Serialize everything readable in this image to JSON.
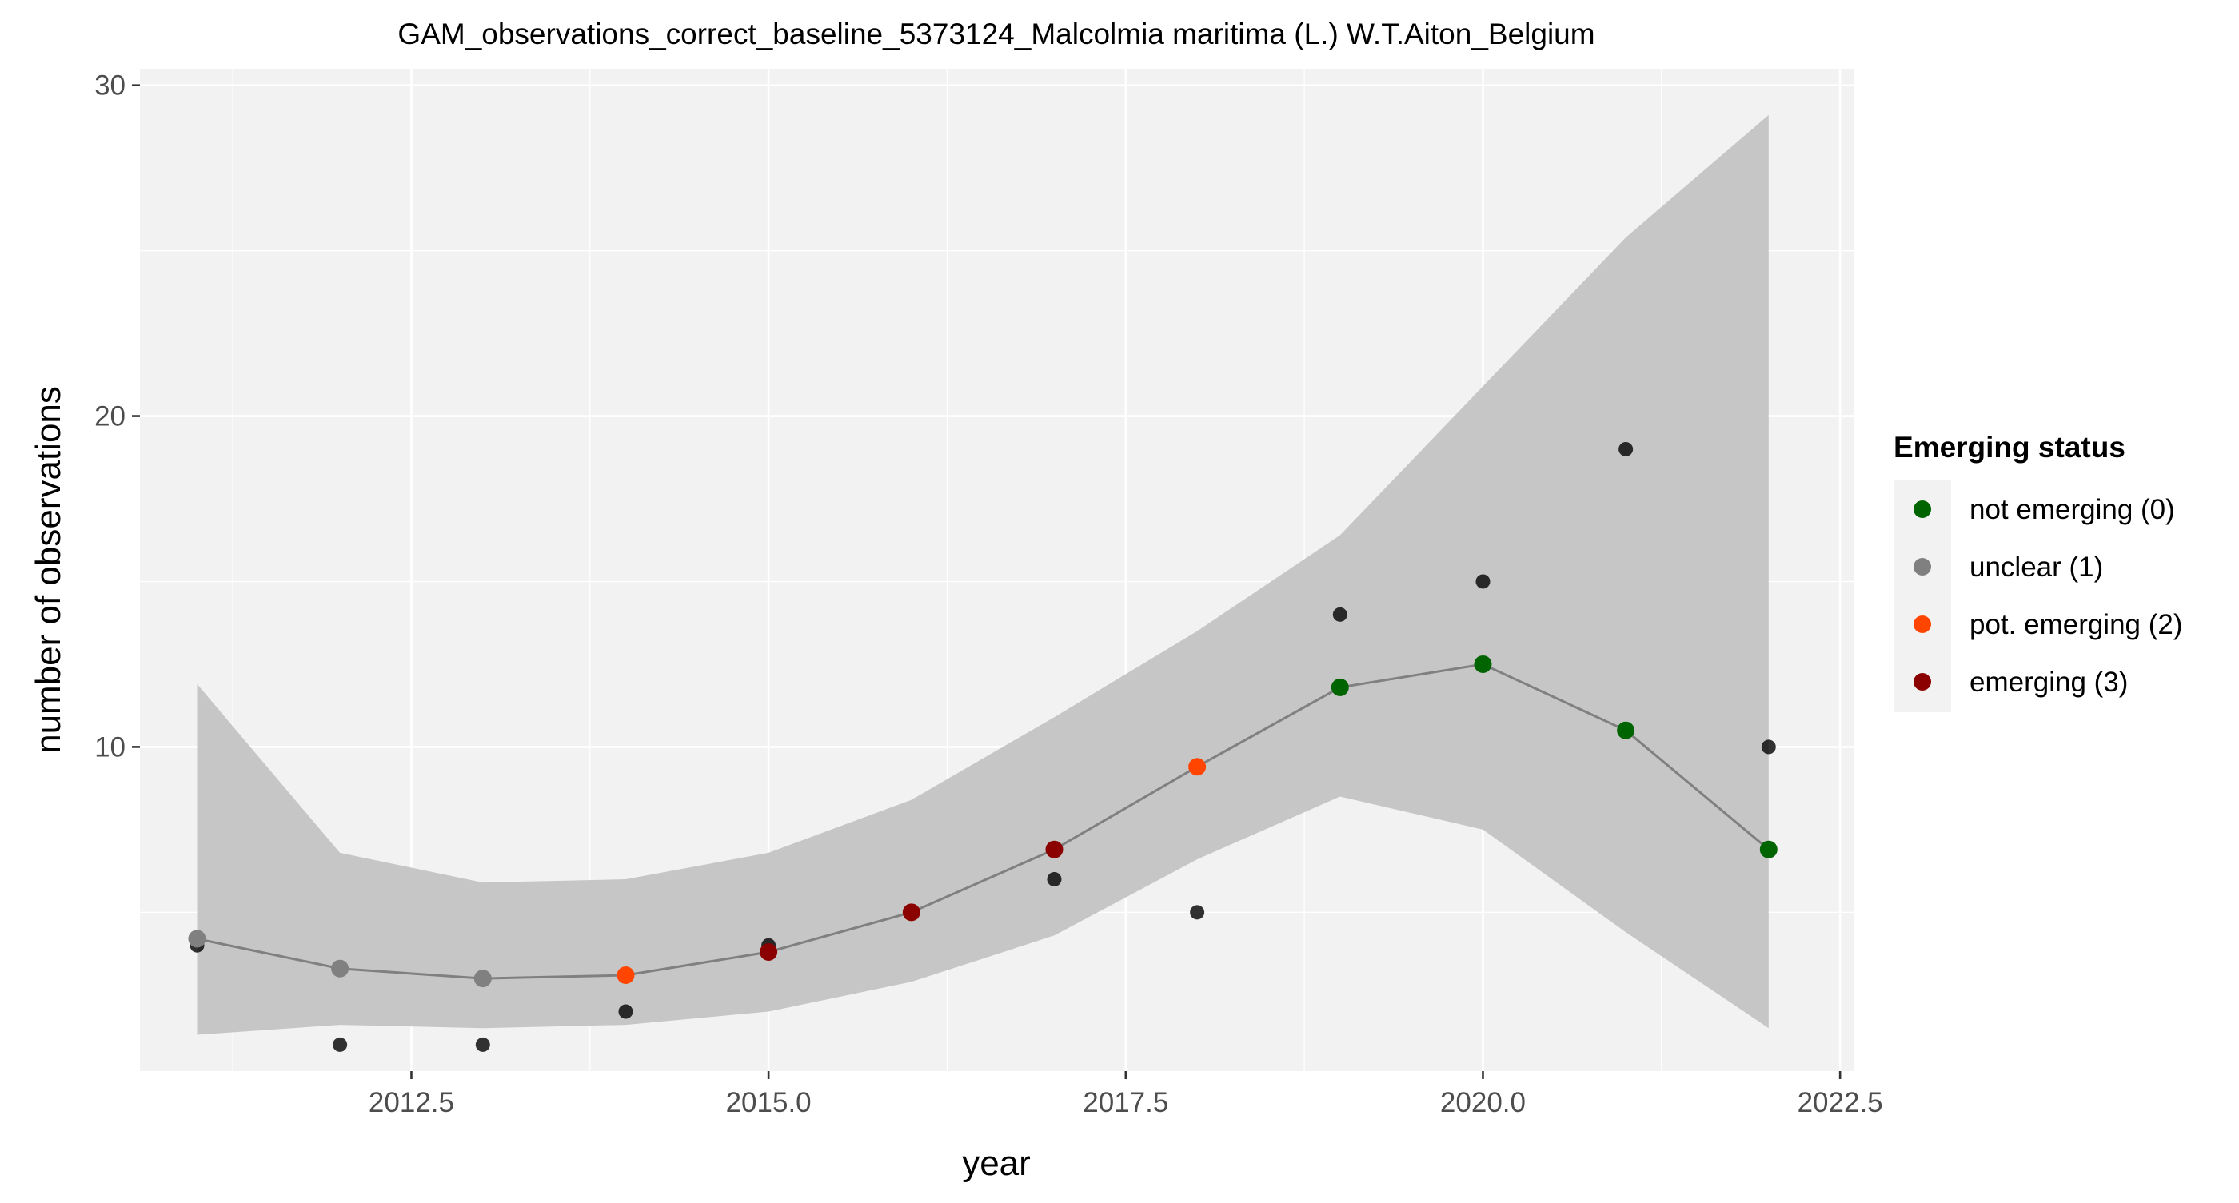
{
  "chart_data": {
    "type": "scatter",
    "title": "GAM_observations_correct_baseline_5373124_Malcolmia maritima (L.) W.T.Aiton_Belgium",
    "xlabel": "year",
    "ylabel": "number of observations",
    "xlim": [
      2010.6,
      2022.6
    ],
    "ylim": [
      0.2,
      30.5
    ],
    "x_ticks": [
      2012.5,
      2015.0,
      2017.5,
      2020.0,
      2022.5
    ],
    "x_tick_labels": [
      "2012.5",
      "2015.0",
      "2017.5",
      "2020.0",
      "2022.5"
    ],
    "y_ticks": [
      10,
      20,
      30
    ],
    "y_tick_labels": [
      "10",
      "20",
      "30"
    ],
    "grid": true,
    "legend_position": "right",
    "legend_title": "Emerging status",
    "legend": [
      {
        "key": "not_emerging",
        "label": "not emerging (0)",
        "color": "#006400"
      },
      {
        "key": "unclear",
        "label": "unclear (1)",
        "color": "#808080"
      },
      {
        "key": "pot_emerging",
        "label": "pot. emerging (2)",
        "color": "#FF4500"
      },
      {
        "key": "emerging",
        "label": "emerging (3)",
        "color": "#8B0000"
      }
    ],
    "observations": {
      "color": "#000000",
      "points": [
        {
          "x": 2011,
          "y": 4
        },
        {
          "x": 2012,
          "y": 1
        },
        {
          "x": 2013,
          "y": 1
        },
        {
          "x": 2014,
          "y": 2
        },
        {
          "x": 2015,
          "y": 4
        },
        {
          "x": 2016,
          "y": 5
        },
        {
          "x": 2017,
          "y": 6
        },
        {
          "x": 2018,
          "y": 5
        },
        {
          "x": 2019,
          "y": 14
        },
        {
          "x": 2020,
          "y": 15
        },
        {
          "x": 2021,
          "y": 19
        },
        {
          "x": 2022,
          "y": 10
        }
      ]
    },
    "gam_fit": {
      "line_color": "#808080",
      "band_color": "#C6C6C6",
      "points": [
        {
          "x": 2011,
          "y": 4.2,
          "lower": 1.3,
          "upper": 11.9,
          "status": "unclear"
        },
        {
          "x": 2012,
          "y": 3.3,
          "lower": 1.6,
          "upper": 6.8,
          "status": "unclear"
        },
        {
          "x": 2013,
          "y": 3.0,
          "lower": 1.5,
          "upper": 5.9,
          "status": "unclear"
        },
        {
          "x": 2014,
          "y": 3.1,
          "lower": 1.6,
          "upper": 6.0,
          "status": "pot_emerging"
        },
        {
          "x": 2015,
          "y": 3.8,
          "lower": 2.0,
          "upper": 6.8,
          "status": "emerging"
        },
        {
          "x": 2016,
          "y": 5.0,
          "lower": 2.9,
          "upper": 8.4,
          "status": "emerging"
        },
        {
          "x": 2017,
          "y": 6.9,
          "lower": 4.3,
          "upper": 10.9,
          "status": "emerging"
        },
        {
          "x": 2018,
          "y": 9.4,
          "lower": 6.6,
          "upper": 13.5,
          "status": "pot_emerging"
        },
        {
          "x": 2019,
          "y": 11.8,
          "lower": 8.5,
          "upper": 16.4,
          "status": "not_emerging"
        },
        {
          "x": 2020,
          "y": 12.5,
          "lower": 7.5,
          "upper": 20.9,
          "status": "not_emerging"
        },
        {
          "x": 2021,
          "y": 10.5,
          "lower": 4.4,
          "upper": 25.4,
          "status": "not_emerging"
        },
        {
          "x": 2022,
          "y": 6.9,
          "lower": 1.5,
          "upper": 29.1,
          "status": "not_emerging"
        }
      ]
    }
  }
}
